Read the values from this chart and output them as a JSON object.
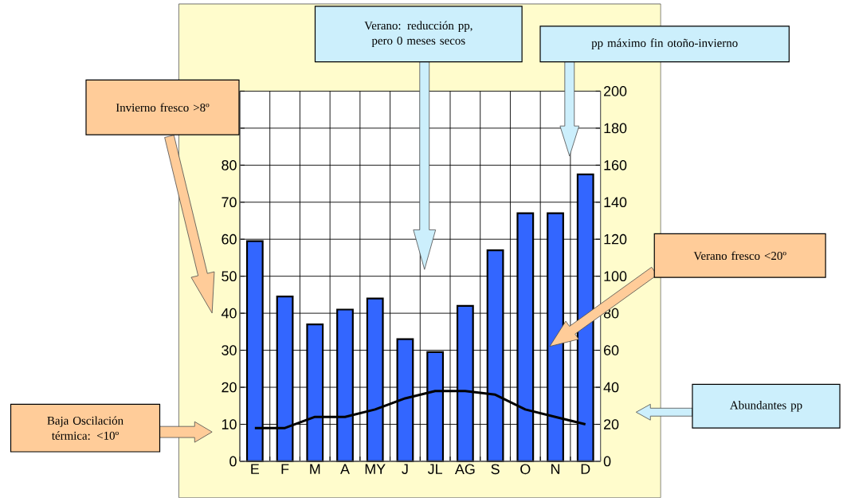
{
  "chart_data": {
    "type": "bar",
    "categories": [
      "E",
      "F",
      "M",
      "A",
      "MY",
      "J",
      "JL",
      "AG",
      "S",
      "O",
      "N",
      "D"
    ],
    "series": [
      {
        "axis": "y2",
        "color": "#3366ff",
        "values": [
          119,
          89,
          74,
          82,
          88,
          66,
          59,
          84,
          114,
          134,
          134,
          155
        ]
      },
      {
        "type": "line",
        "color": "#000000",
        "values": [
          9,
          9,
          12,
          12,
          14,
          17,
          19,
          19,
          18,
          14,
          12,
          10
        ]
      }
    ],
    "ylim": [
      0,
      100
    ],
    "yticks": [
      0,
      10,
      20,
      30,
      40,
      50,
      60,
      70,
      80,
      {
        "value": 90,
        "label": null
      },
      {
        "value": 100,
        "label": null
      }
    ],
    "y2lim": [
      0,
      200
    ],
    "y2ticks": [
      0,
      20,
      40,
      60,
      80,
      100,
      120,
      140,
      160,
      180,
      200
    ],
    "grid": true,
    "annotations": [
      "Verano: reducción pp, pero 0 meses secos",
      "pp máximo fin otoño-invierno",
      "Invierno fresco >8º",
      "Verano fresco <20º",
      "Baja Oscilación térmica: <10º",
      "Abundantes pp"
    ]
  }
}
